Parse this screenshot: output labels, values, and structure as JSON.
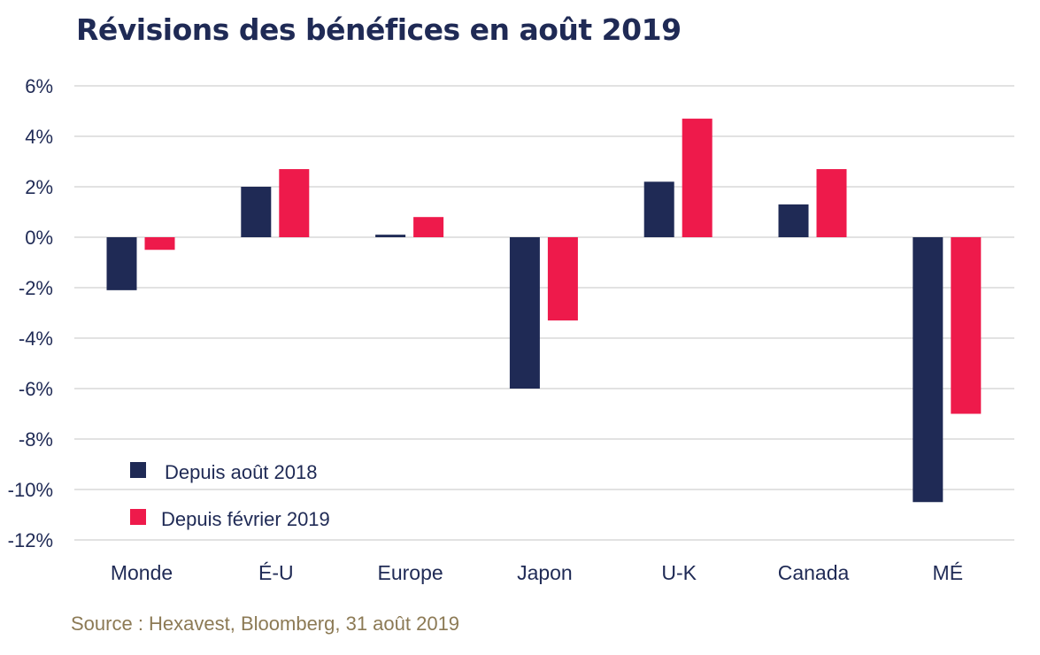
{
  "title": "Révisions des bénéfices en août 2019",
  "source": "Source : Hexavest, Bloomberg, 31 août 2019",
  "colors": {
    "series1": "#1f2a55",
    "series2": "#ee1a4b",
    "grid": "#d9d9d9",
    "text": "#1f2a55",
    "source": "#8c7a55"
  },
  "chart_data": {
    "type": "bar",
    "title": "Révisions des bénéfices en août 2019",
    "categories": [
      "Monde",
      "É-U",
      "Europe",
      "Japon",
      "U-K",
      "Canada",
      "MÉ"
    ],
    "series": [
      {
        "name": "Depuis août 2018",
        "values": [
          -2.1,
          2.0,
          0.1,
          -6.0,
          2.2,
          1.3,
          -10.5
        ]
      },
      {
        "name": "Depuis février 2019",
        "values": [
          -0.5,
          2.7,
          0.8,
          -3.3,
          4.7,
          2.7,
          -7.0
        ]
      }
    ],
    "ylim": [
      -12,
      6
    ],
    "yticks": [
      "6%",
      "4%",
      "2%",
      "0%",
      "-2%",
      "-4%",
      "-6%",
      "-8%",
      "-10%",
      "-12%"
    ],
    "ytick_values": [
      6,
      4,
      2,
      0,
      -2,
      -4,
      -6,
      -8,
      -10,
      -12
    ],
    "grid": true,
    "legend_position": "bottom-left"
  }
}
